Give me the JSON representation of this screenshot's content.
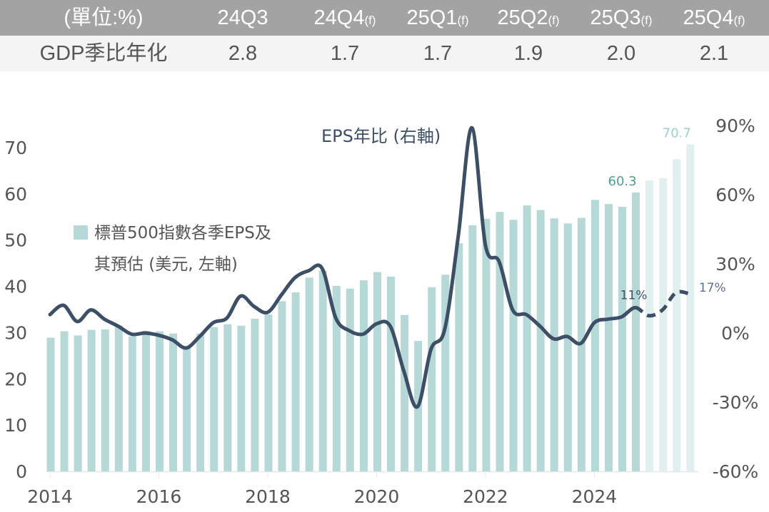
{
  "table": {
    "header": [
      {
        "main": "(單位:%)",
        "suffix": ""
      },
      {
        "main": "24Q3",
        "suffix": ""
      },
      {
        "main": "24Q4",
        "suffix": "(f)"
      },
      {
        "main": "25Q1",
        "suffix": "(f)"
      },
      {
        "main": "25Q2",
        "suffix": "(f)"
      },
      {
        "main": "25Q3",
        "suffix": "(f)"
      },
      {
        "main": "25Q4",
        "suffix": "(f)"
      }
    ],
    "row_label": "GDP季比年化",
    "row_values": [
      "2.8",
      "1.7",
      "1.7",
      "1.9",
      "2.0",
      "2.1"
    ]
  },
  "chart_data": {
    "type": "bar",
    "title": "",
    "x_ticks": [
      "2014",
      "2016",
      "2018",
      "2020",
      "2022",
      "2024"
    ],
    "x_start": "2014Q1",
    "left_axis": {
      "label": "美元",
      "range": [
        0,
        70
      ],
      "ticks": [
        "0",
        "10",
        "20",
        "30",
        "40",
        "50",
        "60",
        "70"
      ]
    },
    "right_axis": {
      "label": "%",
      "range": [
        -60,
        90
      ],
      "ticks": [
        "-60%",
        "-30%",
        "0%",
        "30%",
        "60%",
        "90%"
      ]
    },
    "series": [
      {
        "name": "標普500指數各季EPS及其預估 (美元, 左軸)",
        "legend_line1": "標普500指數各季EPS及",
        "legend_line2": "其預估 (美元, 左軸)",
        "type": "bar",
        "axis": "left",
        "color": "#b6d9d8",
        "forecast_color": "#e1efee",
        "forecast_from_index": 44,
        "values": [
          28.9,
          30.3,
          29.4,
          30.6,
          30.7,
          31.5,
          29.2,
          30.4,
          30.3,
          29.8,
          27.0,
          29.8,
          31.2,
          31.8,
          31.5,
          33.0,
          33.9,
          36.8,
          38.7,
          41.9,
          43.4,
          40.1,
          39.5,
          41.3,
          43.1,
          42.1,
          33.8,
          28.2,
          39.8,
          42.5,
          49.3,
          53.2,
          54.6,
          56.1,
          54.4,
          57.5,
          56.5,
          54.7,
          53.6,
          54.8,
          58.7,
          57.8,
          57.2,
          60.3,
          62.9,
          63.4,
          67.5,
          70.7
        ],
        "data_labels": [
          {
            "index": 43,
            "text": "60.3",
            "color": "#4e9f96"
          },
          {
            "index": 47,
            "text": "70.7",
            "color": "#9fcfca"
          }
        ]
      },
      {
        "name": "EPS年比 (右軸)",
        "type": "line",
        "axis": "right",
        "color": "#3d4f66",
        "dashed_from_index": 43,
        "values": [
          8,
          12,
          5,
          10,
          6,
          3,
          -0.5,
          0,
          -1,
          -3,
          -6.5,
          -1.5,
          4.5,
          6.5,
          16,
          11.5,
          9,
          16.5,
          24,
          27,
          28,
          6.5,
          1,
          -0.5,
          4,
          3,
          -16.5,
          -32,
          -7,
          1.5,
          42,
          89,
          38,
          31,
          10,
          8,
          3,
          -2.5,
          -1.5,
          -4.5,
          4.5,
          6,
          7,
          11,
          7.5,
          10,
          17.5,
          17
        ],
        "data_labels": [
          {
            "index": 43,
            "text": "11%"
          },
          {
            "index": 47,
            "text": "17%"
          }
        ]
      }
    ],
    "axis_text_color": "#555555"
  }
}
